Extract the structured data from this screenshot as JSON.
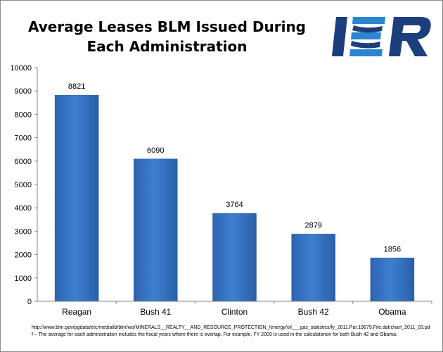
{
  "chart_data": {
    "type": "bar",
    "title": "Average Leases BLM Issued During Each Administration",
    "categories": [
      "Reagan",
      "Bush 41",
      "Clinton",
      "Bush 42",
      "Obama"
    ],
    "values": [
      8821,
      6090,
      3764,
      2879,
      1856
    ],
    "ylim": [
      0,
      10000
    ],
    "yticks": [
      "0",
      "1000",
      "2000",
      "3000",
      "4000",
      "5000",
      "6000",
      "7000",
      "8000",
      "9000",
      "10000"
    ],
    "grid": false,
    "legend": "none",
    "bar_color": "#3b78c8",
    "bar_color_dark": "#245ea8"
  },
  "logo": {
    "text": "IER",
    "color": "#1b3f7c",
    "accent": "#2b86d1"
  },
  "footnote": {
    "line1": "http://www.blm.gov/pgdata/etc/medialib/blm/wo/MINERALS__REALTY__AND_RESOURCE_PROTECTION_/energy/oil___gas_statistics/fy_2011.Par.19679.File.dat/chart_2011_03.pd",
    "line2": "f – The average for each administraiton includes the fiscal years where there is overlap. For example, FY 2009 is used in the calculatorion for both Bush 42 and Obama."
  }
}
